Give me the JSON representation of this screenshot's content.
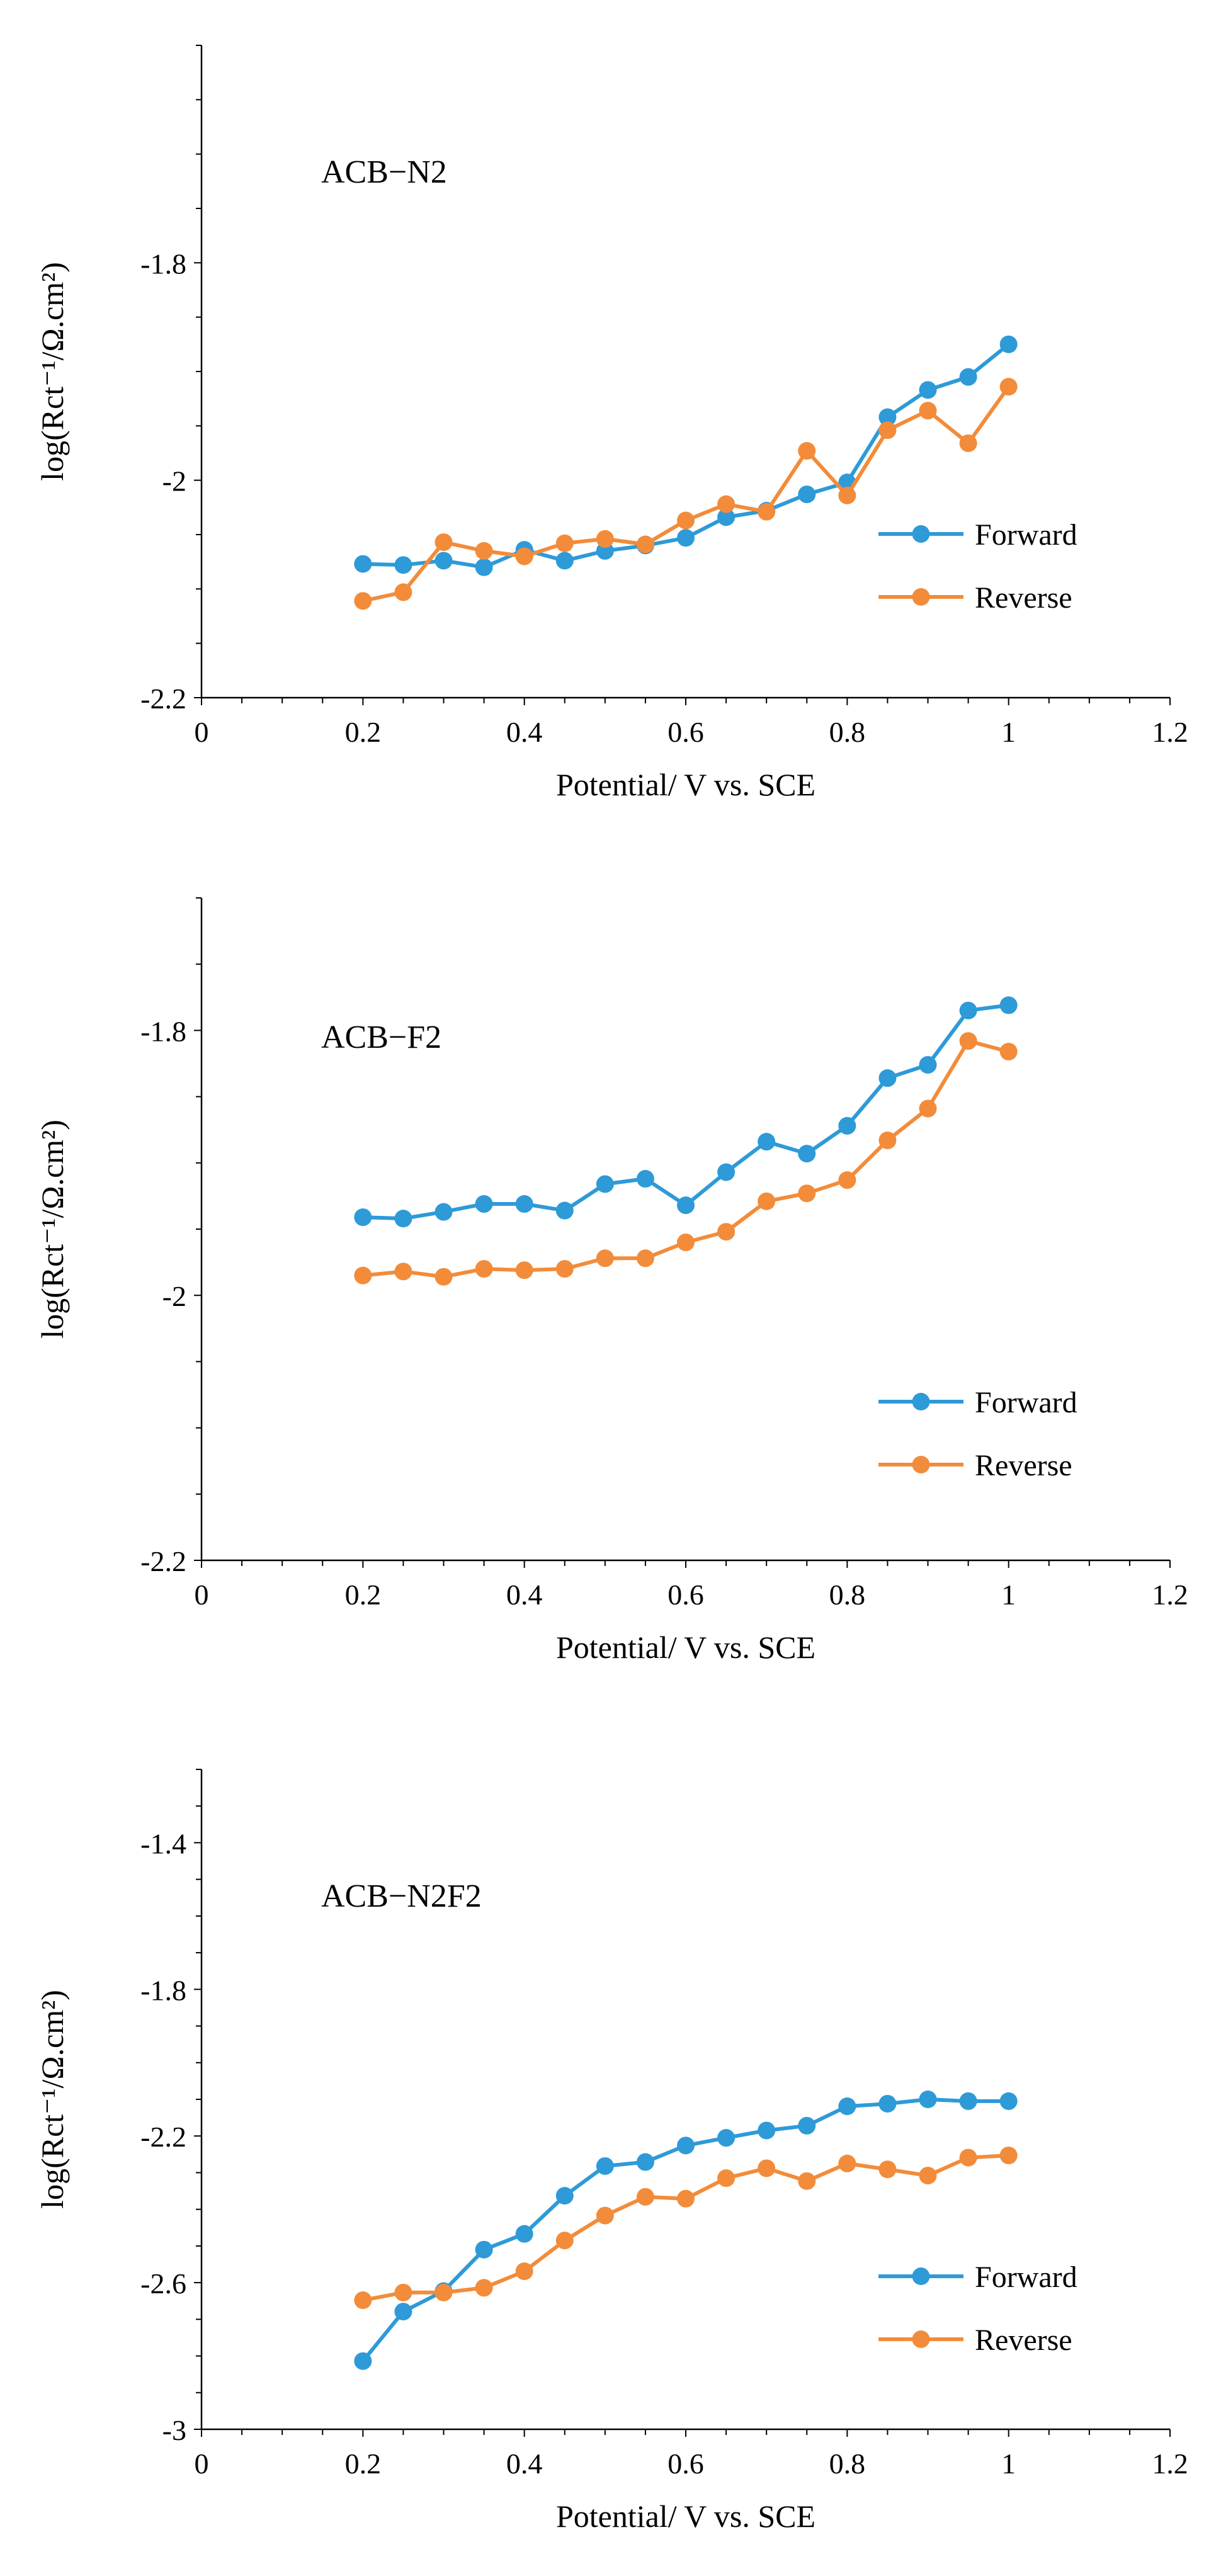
{
  "chart_data": [
    {
      "type": "line",
      "annotation": "ACB−N2",
      "xlabel": "Potential/ V vs. SCE",
      "ylabel": "log(Rct⁻¹/Ω.cm²)",
      "xlim": [
        0,
        1.2
      ],
      "ylim": [
        -2.2,
        -1.6
      ],
      "xticks": [
        0,
        0.2,
        0.4,
        0.6,
        0.8,
        1,
        1.2
      ],
      "xtick_labels": [
        "0",
        "0.2",
        "0.4",
        "0.6",
        "0.8",
        "1",
        "1.2"
      ],
      "yticks": [
        -2.2,
        -2,
        -1.8
      ],
      "ytick_labels": [
        "-2.2",
        "-2",
        "-1.8"
      ],
      "grid": false,
      "legend_position": "right",
      "x": [
        0.2,
        0.25,
        0.3,
        0.35,
        0.4,
        0.45,
        0.5,
        0.55,
        0.6,
        0.65,
        0.7,
        0.75,
        0.8,
        0.85,
        0.9,
        0.95,
        1.0
      ],
      "series": [
        {
          "name": "Forward",
          "color": "#2E9AD8",
          "values": [
            -2.077,
            -2.078,
            -2.074,
            -2.08,
            -2.064,
            -2.074,
            -2.065,
            -2.06,
            -2.053,
            -2.034,
            -2.028,
            -2.013,
            -2.002,
            -1.942,
            -1.917,
            -1.905,
            -1.875
          ]
        },
        {
          "name": "Reverse",
          "color": "#F28C3A",
          "values": [
            -2.111,
            -2.103,
            -2.057,
            -2.065,
            -2.07,
            -2.058,
            -2.054,
            -2.059,
            -2.037,
            -2.022,
            -2.029,
            -1.973,
            -2.014,
            -1.954,
            -1.936,
            -1.966,
            -1.914
          ]
        }
      ]
    },
    {
      "type": "line",
      "annotation": "ACB−F2",
      "xlabel": "Potential/ V vs. SCE",
      "ylabel": "log(Rct⁻¹/Ω.cm²)",
      "xlim": [
        0,
        1.2
      ],
      "ylim": [
        -2.2,
        -1.7
      ],
      "xticks": [
        0,
        0.2,
        0.4,
        0.6,
        0.8,
        1,
        1.2
      ],
      "xtick_labels": [
        "0",
        "0.2",
        "0.4",
        "0.6",
        "0.8",
        "1",
        "1.2"
      ],
      "yticks": [
        -2.2,
        -2,
        -1.8
      ],
      "ytick_labels": [
        "-2.2",
        "-2",
        "-1.8"
      ],
      "grid": false,
      "legend_position": "right",
      "x": [
        0.2,
        0.25,
        0.3,
        0.35,
        0.4,
        0.45,
        0.5,
        0.55,
        0.6,
        0.65,
        0.7,
        0.75,
        0.8,
        0.85,
        0.9,
        0.95,
        1.0
      ],
      "series": [
        {
          "name": "Forward",
          "color": "#2E9AD8",
          "values": [
            -1.941,
            -1.942,
            -1.937,
            -1.931,
            -1.931,
            -1.936,
            -1.916,
            -1.912,
            -1.932,
            -1.907,
            -1.884,
            -1.893,
            -1.872,
            -1.836,
            -1.826,
            -1.785,
            -1.781
          ]
        },
        {
          "name": "Reverse",
          "color": "#F28C3A",
          "values": [
            -1.985,
            -1.982,
            -1.986,
            -1.98,
            -1.981,
            -1.98,
            -1.972,
            -1.972,
            -1.96,
            -1.952,
            -1.929,
            -1.923,
            -1.913,
            -1.883,
            -1.859,
            -1.808,
            -1.816
          ]
        }
      ]
    },
    {
      "type": "line",
      "annotation": "ACB−N2F2",
      "xlabel": "Potential/ V vs. SCE",
      "ylabel": "log(Rct⁻¹/Ω.cm²)",
      "xlim": [
        0,
        1.2
      ],
      "ylim": [
        -3,
        -1.2
      ],
      "xticks": [
        0,
        0.2,
        0.4,
        0.6,
        0.8,
        1,
        1.2
      ],
      "xtick_labels": [
        "0",
        "0.2",
        "0.4",
        "0.6",
        "0.8",
        "1",
        "1.2"
      ],
      "yticks": [
        -3,
        -2.6,
        -2.2,
        -1.8,
        -1.4
      ],
      "ytick_labels": [
        "-3",
        "-2.6",
        "-2.2",
        "-1.8",
        "-1.4"
      ],
      "grid": false,
      "legend_position": "right",
      "x": [
        0.2,
        0.25,
        0.3,
        0.35,
        0.4,
        0.45,
        0.5,
        0.55,
        0.6,
        0.65,
        0.7,
        0.75,
        0.8,
        0.85,
        0.9,
        0.95,
        1.0
      ],
      "series": [
        {
          "name": "Forward",
          "color": "#2E9AD8",
          "values": [
            -2.814,
            -2.679,
            -2.623,
            -2.51,
            -2.467,
            -2.363,
            -2.282,
            -2.271,
            -2.226,
            -2.205,
            -2.185,
            -2.172,
            -2.119,
            -2.112,
            -2.1,
            -2.105,
            -2.105
          ]
        },
        {
          "name": "Reverse",
          "color": "#F28C3A",
          "values": [
            -2.648,
            -2.627,
            -2.627,
            -2.614,
            -2.569,
            -2.485,
            -2.417,
            -2.366,
            -2.371,
            -2.315,
            -2.288,
            -2.323,
            -2.275,
            -2.291,
            -2.308,
            -2.259,
            -2.253
          ]
        }
      ]
    }
  ]
}
